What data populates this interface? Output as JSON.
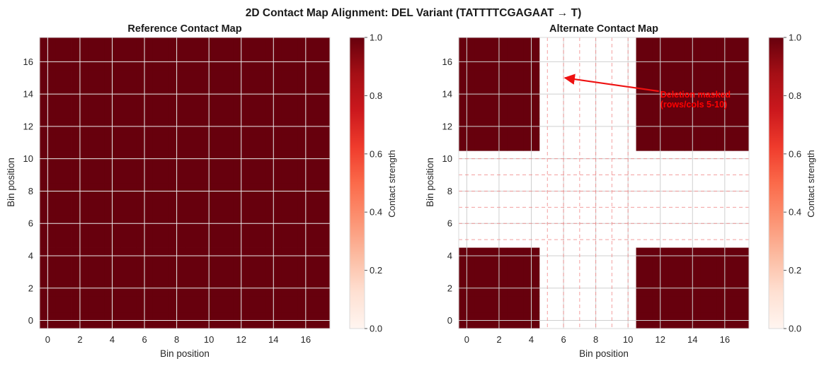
{
  "suptitle": "2D Contact Map Alignment: DEL Variant (TATTTTCGAGAAT → T)",
  "chart_data": [
    {
      "type": "heatmap",
      "title": "Reference Contact Map",
      "xlabel": "Bin position",
      "ylabel": "Bin position",
      "n_bins": 18,
      "xlim": [
        -0.5,
        17.5
      ],
      "ylim": [
        -0.5,
        17.5
      ],
      "xticks": [
        0,
        2,
        4,
        6,
        8,
        10,
        12,
        14,
        16
      ],
      "yticks": [
        0,
        2,
        4,
        6,
        8,
        10,
        12,
        14,
        16
      ],
      "value": 1.0,
      "masked_bins": [],
      "grid": true,
      "colorbar": {
        "label": "Contact strength",
        "min": 0.0,
        "max": 1.0,
        "ticks": [
          "0.0",
          "0.2",
          "0.4",
          "0.6",
          "0.8",
          "1.0"
        ]
      }
    },
    {
      "type": "heatmap",
      "title": "Alternate Contact Map",
      "xlabel": "Bin position",
      "ylabel": "Bin position",
      "n_bins": 18,
      "xlim": [
        -0.5,
        17.5
      ],
      "ylim": [
        -0.5,
        17.5
      ],
      "xticks": [
        0,
        2,
        4,
        6,
        8,
        10,
        12,
        14,
        16
      ],
      "yticks": [
        0,
        2,
        4,
        6,
        8,
        10,
        12,
        14,
        16
      ],
      "value": 1.0,
      "masked_bins": [
        5,
        6,
        7,
        8,
        9,
        10
      ],
      "masked_guide_lines": [
        5,
        6,
        7,
        8,
        9,
        10
      ],
      "grid": true,
      "annotation": {
        "text_lines": [
          "Deletion masked",
          "(rows/cols 5-10)"
        ],
        "arrow_tip": [
          6,
          15
        ],
        "text_anchor": [
          12,
          14
        ],
        "color": "#ff0000"
      },
      "colorbar": {
        "label": "Contact strength",
        "min": 0.0,
        "max": 1.0,
        "ticks": [
          "0.0",
          "0.2",
          "0.4",
          "0.6",
          "0.8",
          "1.0"
        ]
      }
    }
  ]
}
